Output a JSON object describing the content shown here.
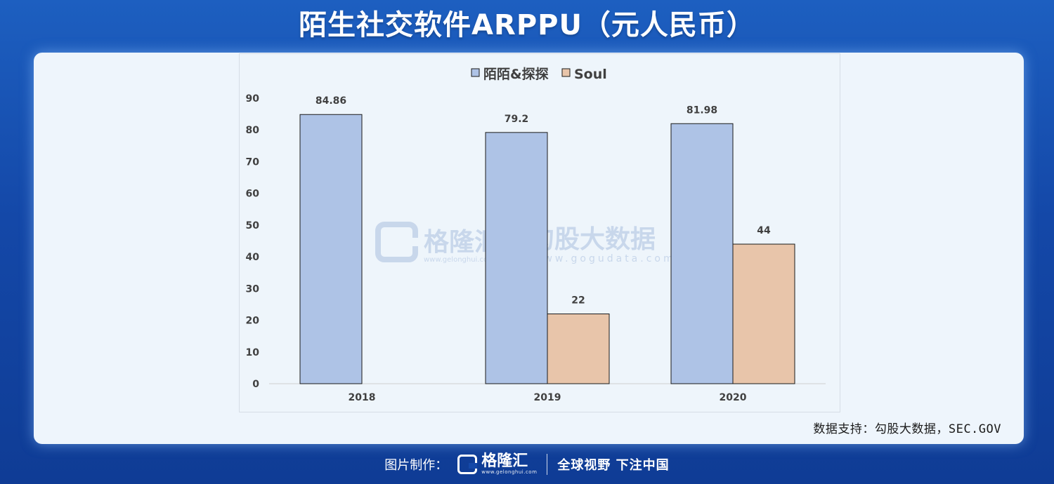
{
  "header": {
    "title": "陌生社交软件ARPPU（元人民币）"
  },
  "chart_data": {
    "type": "bar",
    "categories": [
      "2018",
      "2019",
      "2020"
    ],
    "series": [
      {
        "name": "陌陌&探探",
        "values": [
          84.86,
          79.2,
          81.98
        ],
        "labels": [
          "84.86",
          "79.2",
          "81.98"
        ],
        "color": "#aec3e6"
      },
      {
        "name": "Soul",
        "values": [
          null,
          22,
          44
        ],
        "labels": [
          "",
          "22",
          "44"
        ],
        "color": "#e8c5aa"
      }
    ],
    "ylim": [
      0,
      90
    ],
    "yticks": [
      "0",
      "10",
      "20",
      "30",
      "40",
      "50",
      "60",
      "70",
      "80",
      "90"
    ],
    "legend_position": "top-center",
    "grid": false
  },
  "watermark": {
    "left_name": "格隆汇",
    "left_url": "www.gelonghui.com",
    "right_name": "勾股大数据",
    "right_url": "www.gogudata.com"
  },
  "source_note": "数据支持：勾股大数据，SEC.GOV",
  "footer": {
    "credit": "图片制作：",
    "logo_text": "格隆汇",
    "logo_sub": "www.gelonghui.com",
    "slogan": "全球视野 下注中国"
  }
}
